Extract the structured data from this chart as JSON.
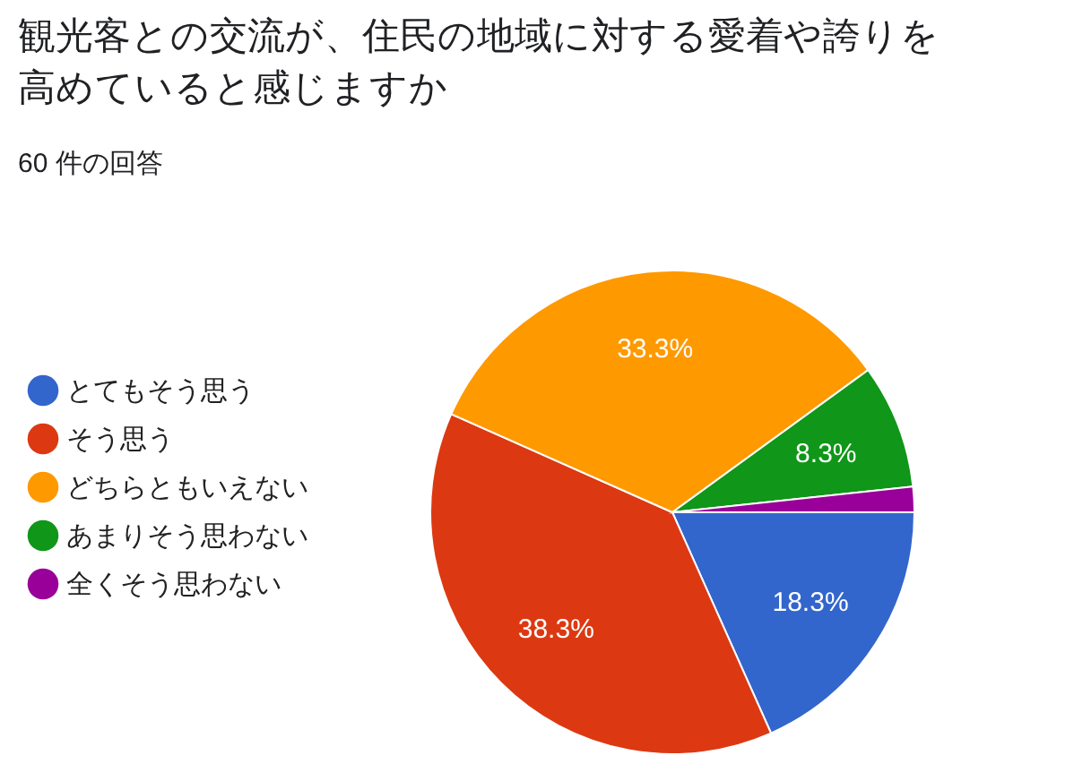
{
  "chart_data": {
    "type": "pie",
    "title": "観光客との交流が、住民の地域に対する愛着や誇りを高めていると感じますか",
    "subtitle": "60 件の回答",
    "categories": [
      "とてもそう思う",
      "そう思う",
      "どちらともいえない",
      "あまりそう思わない",
      "全くそう思わない"
    ],
    "values": [
      18.3,
      38.3,
      33.3,
      8.3,
      1.7
    ],
    "value_labels": [
      "18.3%",
      "38.3%",
      "33.3%",
      "8.3%",
      null
    ],
    "colors": [
      "#3366cc",
      "#dc3912",
      "#ff9900",
      "#109618",
      "#990099"
    ],
    "legend": "left"
  }
}
